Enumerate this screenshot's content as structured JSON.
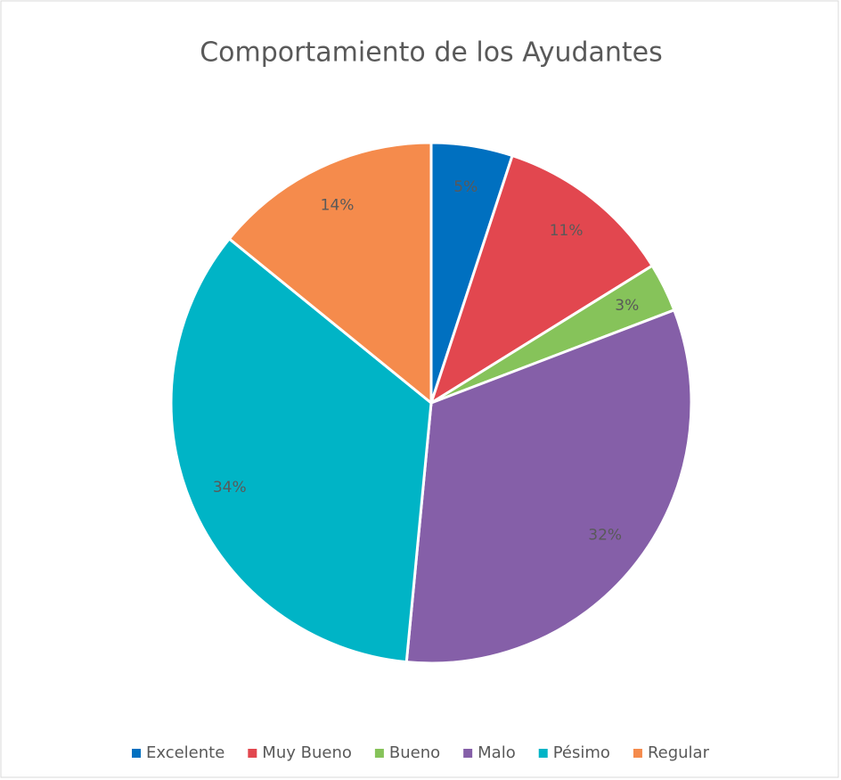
{
  "chart_data": {
    "type": "pie",
    "title": "Comportamiento de los Ayudantes",
    "categories": [
      "Excelente",
      "Muy Bueno",
      "Bueno",
      "Malo",
      "Pésimo",
      "Regular"
    ],
    "values": [
      5,
      11,
      3,
      32,
      34,
      14
    ],
    "value_labels": [
      "5%",
      "11%",
      "3%",
      "32%",
      "34%",
      "14%"
    ],
    "colors": [
      "#0070c0",
      "#e2474f",
      "#86c35a",
      "#855fa8",
      "#00b4c6",
      "#f58b4c"
    ],
    "legend": "bottom"
  }
}
